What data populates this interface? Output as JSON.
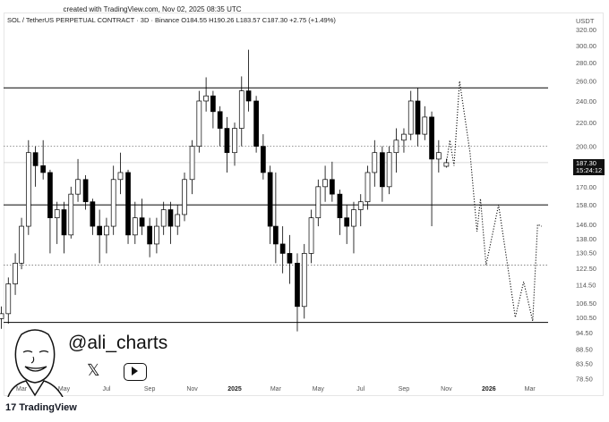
{
  "header": {
    "created": "created with TradingView.com, Nov 02, 2025 08:35 UTC",
    "legend": "SOL / TetherUS PERPETUAL CONTRACT · 3D · Binance  O184.55  H190.26  L183.57  C187.30  +2.75 (+1.49%)"
  },
  "branding": {
    "handle": "@ali_charts",
    "x_icon": "x-logo-icon",
    "youtube_icon": "youtube-play-icon",
    "footer": "TradingView",
    "footer_mark": "17"
  },
  "current_price": {
    "value": "187.30",
    "countdown": "15:24:12"
  },
  "chart_data": {
    "type": "candlestick",
    "symbol": "SOL / TetherUS PERPETUAL CONTRACT",
    "interval": "3D",
    "y_unit": "USDT",
    "y_scale": "log",
    "ylim": [
      78.5,
      330
    ],
    "xlim": [
      "2024-01-28",
      "2026-04-15"
    ],
    "grid": false,
    "y_ticks": [
      "320.00",
      "300.00",
      "280.00",
      "260.00",
      "240.00",
      "220.00",
      "200.00",
      "170.00",
      "158.00",
      "146.00",
      "138.00",
      "130.50",
      "122.50",
      "114.50",
      "106.50",
      "100.50",
      "94.50",
      "88.50",
      "83.50",
      "78.50"
    ],
    "x_ticks": [
      {
        "label": "Mar",
        "date": "2024-03-01"
      },
      {
        "label": "May",
        "date": "2024-05-01"
      },
      {
        "label": "Jul",
        "date": "2024-07-01"
      },
      {
        "label": "Sep",
        "date": "2024-09-01"
      },
      {
        "label": "Nov",
        "date": "2024-11-01"
      },
      {
        "label": "2025",
        "date": "2025-01-01",
        "bold": true
      },
      {
        "label": "Mar",
        "date": "2025-03-01"
      },
      {
        "label": "May",
        "date": "2025-05-01"
      },
      {
        "label": "Jul",
        "date": "2025-07-01"
      },
      {
        "label": "Sep",
        "date": "2025-09-01"
      },
      {
        "label": "Nov",
        "date": "2025-11-01"
      },
      {
        "label": "2026",
        "date": "2026-01-01",
        "bold": true
      },
      {
        "label": "Mar",
        "date": "2026-03-01"
      }
    ],
    "candles": [
      [
        "2024-02-01",
        100,
        105,
        96,
        102
      ],
      [
        "2024-02-11",
        102,
        118,
        98,
        115
      ],
      [
        "2024-02-21",
        115,
        130,
        110,
        125
      ],
      [
        "2024-03-01",
        125,
        150,
        122,
        145
      ],
      [
        "2024-03-11",
        145,
        205,
        140,
        195
      ],
      [
        "2024-03-21",
        195,
        200,
        170,
        185
      ],
      [
        "2024-04-01",
        185,
        205,
        175,
        180
      ],
      [
        "2024-04-11",
        180,
        182,
        130,
        150
      ],
      [
        "2024-04-21",
        150,
        160,
        135,
        155
      ],
      [
        "2024-05-01",
        155,
        160,
        130,
        140
      ],
      [
        "2024-05-11",
        140,
        170,
        138,
        165
      ],
      [
        "2024-05-21",
        165,
        190,
        160,
        175
      ],
      [
        "2024-06-01",
        175,
        178,
        155,
        160
      ],
      [
        "2024-06-11",
        160,
        162,
        140,
        145
      ],
      [
        "2024-06-21",
        145,
        155,
        125,
        140
      ],
      [
        "2024-07-01",
        140,
        150,
        130,
        145
      ],
      [
        "2024-07-11",
        145,
        185,
        140,
        175
      ],
      [
        "2024-07-21",
        175,
        195,
        165,
        180
      ],
      [
        "2024-08-01",
        180,
        182,
        135,
        140
      ],
      [
        "2024-08-11",
        140,
        160,
        135,
        150
      ],
      [
        "2024-08-21",
        150,
        162,
        140,
        145
      ],
      [
        "2024-09-01",
        145,
        150,
        128,
        135
      ],
      [
        "2024-09-11",
        135,
        150,
        130,
        145
      ],
      [
        "2024-09-21",
        145,
        160,
        140,
        155
      ],
      [
        "2024-10-01",
        155,
        160,
        135,
        145
      ],
      [
        "2024-10-11",
        145,
        158,
        140,
        152
      ],
      [
        "2024-10-21",
        152,
        180,
        148,
        175
      ],
      [
        "2024-11-01",
        175,
        205,
        165,
        200
      ],
      [
        "2024-11-11",
        200,
        250,
        195,
        240
      ],
      [
        "2024-11-21",
        240,
        264,
        230,
        245
      ],
      [
        "2024-12-01",
        245,
        250,
        215,
        230
      ],
      [
        "2024-12-11",
        230,
        235,
        200,
        215
      ],
      [
        "2024-12-21",
        215,
        225,
        180,
        195
      ],
      [
        "2025-01-01",
        195,
        220,
        185,
        215
      ],
      [
        "2025-01-11",
        215,
        265,
        200,
        250
      ],
      [
        "2025-01-21",
        250,
        295,
        230,
        240
      ],
      [
        "2025-02-01",
        240,
        245,
        195,
        200
      ],
      [
        "2025-02-11",
        200,
        210,
        175,
        180
      ],
      [
        "2025-02-21",
        180,
        185,
        135,
        145
      ],
      [
        "2025-03-01",
        145,
        180,
        125,
        135
      ],
      [
        "2025-03-11",
        135,
        145,
        120,
        130
      ],
      [
        "2025-03-21",
        130,
        140,
        115,
        125
      ],
      [
        "2025-04-01",
        125,
        130,
        95,
        105
      ],
      [
        "2025-04-11",
        105,
        135,
        100,
        130
      ],
      [
        "2025-04-21",
        130,
        155,
        125,
        150
      ],
      [
        "2025-05-01",
        150,
        175,
        145,
        170
      ],
      [
        "2025-05-11",
        170,
        185,
        160,
        175
      ],
      [
        "2025-05-21",
        175,
        188,
        160,
        165
      ],
      [
        "2025-06-01",
        165,
        168,
        140,
        150
      ],
      [
        "2025-06-11",
        150,
        158,
        135,
        145
      ],
      [
        "2025-06-21",
        145,
        160,
        130,
        155
      ],
      [
        "2025-07-01",
        155,
        165,
        145,
        160
      ],
      [
        "2025-07-11",
        160,
        185,
        155,
        180
      ],
      [
        "2025-07-21",
        180,
        205,
        170,
        195
      ],
      [
        "2025-08-01",
        195,
        200,
        160,
        170
      ],
      [
        "2025-08-11",
        170,
        200,
        165,
        195
      ],
      [
        "2025-08-21",
        195,
        215,
        180,
        205
      ],
      [
        "2025-09-01",
        205,
        215,
        195,
        210
      ],
      [
        "2025-09-11",
        210,
        250,
        205,
        240
      ],
      [
        "2025-09-21",
        240,
        253,
        200,
        210
      ],
      [
        "2025-10-01",
        210,
        235,
        205,
        225
      ],
      [
        "2025-10-11",
        225,
        230,
        145,
        190
      ],
      [
        "2025-10-21",
        190,
        205,
        180,
        195
      ],
      [
        "2025-11-01",
        184.55,
        190.26,
        183.57,
        187.3
      ]
    ],
    "levels": [
      {
        "price": 253,
        "style": "solid"
      },
      {
        "price": 158,
        "style": "solid"
      },
      {
        "price": 98.5,
        "style": "solid"
      },
      {
        "price": 200,
        "style": "dotted"
      },
      {
        "price": 124,
        "style": "dotted"
      },
      {
        "price": 187.3,
        "style": "current"
      }
    ],
    "projection": [
      [
        "2025-11-01",
        187
      ],
      [
        "2025-11-06",
        205
      ],
      [
        "2025-11-12",
        185
      ],
      [
        "2025-11-20",
        260
      ],
      [
        "2025-12-05",
        195
      ],
      [
        "2025-12-15",
        142
      ],
      [
        "2025-12-20",
        162
      ],
      [
        "2025-12-28",
        124
      ],
      [
        "2026-01-15",
        158
      ],
      [
        "2026-02-08",
        100.5
      ],
      [
        "2026-02-20",
        116
      ],
      [
        "2026-03-05",
        99
      ],
      [
        "2026-03-12",
        146
      ],
      [
        "2026-03-18",
        145
      ]
    ],
    "colors": {
      "up": "#ffffff",
      "down": "#000000",
      "outline": "#000000",
      "levels": "#222222"
    }
  }
}
